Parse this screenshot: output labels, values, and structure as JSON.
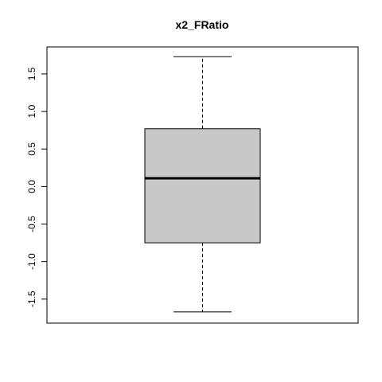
{
  "chart_data": {
    "type": "boxplot",
    "title": "x2_FRatio",
    "xlabel": "",
    "ylabel": "",
    "ylim": [
      -1.82,
      1.86
    ],
    "y_ticks": [
      -1.5,
      -1.0,
      -0.5,
      0.0,
      0.5,
      1.0,
      1.5
    ],
    "y_tick_labels": [
      "-1.5",
      "-1.0",
      "-0.5",
      "0.0",
      "0.5",
      "1.0",
      "1.5"
    ],
    "box": {
      "whisker_low": -1.67,
      "q1": -0.75,
      "median": 0.11,
      "q3": 0.77,
      "whisker_high": 1.73
    },
    "grid": false,
    "legend": "none",
    "colors": {
      "box_fill": "#c8c8c8",
      "stroke": "#000000",
      "background": "#ffffff"
    }
  }
}
